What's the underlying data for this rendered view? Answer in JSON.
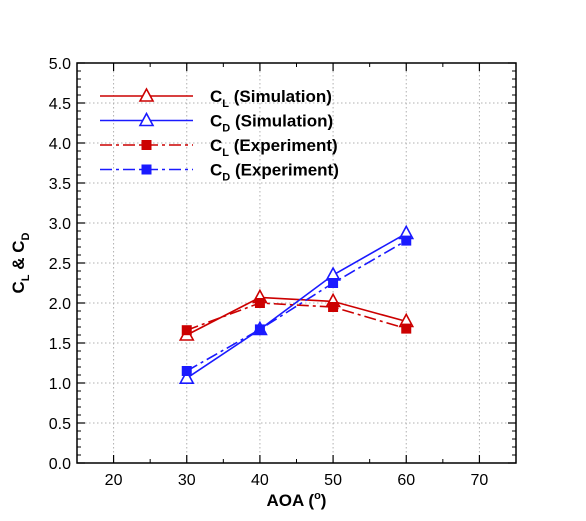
{
  "chart_data": {
    "type": "line",
    "xlabel": "AOA (",
    "xlabel_sup": "o",
    "xlabel_end": ")",
    "ylabel_c1": "C",
    "ylabel_s1": "L",
    "ylabel_amp": " & ",
    "ylabel_c2": "C",
    "ylabel_s2": "D",
    "xlim": [
      15,
      75
    ],
    "ylim": [
      0,
      5
    ],
    "xticks": [
      20,
      30,
      40,
      50,
      60,
      70
    ],
    "yticks": [
      "0.0",
      "0.5",
      "1.0",
      "1.5",
      "2.0",
      "2.5",
      "3.0",
      "3.5",
      "4.0",
      "4.5",
      "5.0"
    ],
    "grid": true,
    "legend_position": "top-left",
    "series": [
      {
        "name": "C",
        "sub": "L",
        "suffix": " (Simulation)",
        "color": "#cc0000",
        "dash": "solid",
        "marker": "triangle-open",
        "x": [
          30,
          40,
          50,
          60
        ],
        "y": [
          1.6,
          2.07,
          2.02,
          1.77
        ]
      },
      {
        "name": "C",
        "sub": "D",
        "suffix": " (Simulation)",
        "color": "#1a1aff",
        "dash": "solid",
        "marker": "triangle-open",
        "x": [
          30,
          40,
          50,
          60
        ],
        "y": [
          1.06,
          1.67,
          2.35,
          2.87
        ]
      },
      {
        "name": "C",
        "sub": "L",
        "suffix": " (Experiment)",
        "color": "#cc0000",
        "dash": "dashdot",
        "marker": "square-filled",
        "x": [
          30,
          40,
          50,
          60
        ],
        "y": [
          1.66,
          2.0,
          1.95,
          1.68
        ]
      },
      {
        "name": "C",
        "sub": "D",
        "suffix": " (Experiment)",
        "color": "#1a1aff",
        "dash": "dashdot",
        "marker": "square-filled",
        "x": [
          30,
          40,
          50,
          60
        ],
        "y": [
          1.15,
          1.67,
          2.25,
          2.78
        ]
      }
    ]
  }
}
